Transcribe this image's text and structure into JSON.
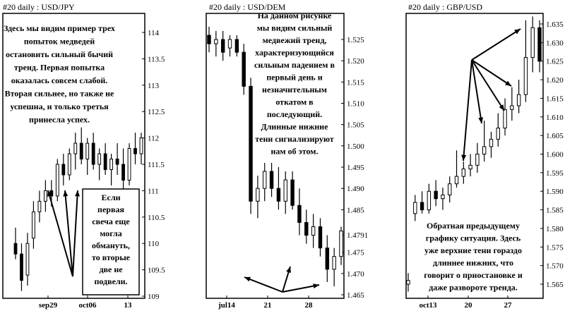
{
  "chart_data": [
    {
      "type": "candlestick",
      "title": "#20  daily : USD/JPY",
      "y_ticks": [
        "114",
        "113.5",
        "113",
        "112.5",
        "112",
        "111.5",
        "111",
        "110.5",
        "110",
        "109.5",
        "109"
      ],
      "ylim": [
        109,
        114.2
      ],
      "x_ticks": [
        "sep29",
        "oct06",
        "13"
      ],
      "annotation": "Здесь мы видим пример трех попыток медведей остановить сильный бычий тренд. Первая попытка оказалась совсем слабой. Вторая сильнее, но также не успешна, и только третья принесла успех.",
      "annotation2": "Если первая свеча еще могла обмануть, то вторые две не подвели.",
      "candles": [
        {
          "o": 110.0,
          "h": 110.3,
          "l": 109.7,
          "c": 109.8
        },
        {
          "o": 109.8,
          "h": 110.0,
          "l": 109.1,
          "c": 109.3
        },
        {
          "o": 109.4,
          "h": 110.2,
          "l": 109.2,
          "c": 110.0
        },
        {
          "o": 110.1,
          "h": 110.8,
          "l": 109.9,
          "c": 110.6
        },
        {
          "o": 110.6,
          "h": 111.0,
          "l": 110.4,
          "c": 110.8
        },
        {
          "o": 110.8,
          "h": 111.2,
          "l": 110.6,
          "c": 111.0
        },
        {
          "o": 111.0,
          "h": 111.2,
          "l": 110.7,
          "c": 110.9
        },
        {
          "o": 110.9,
          "h": 111.6,
          "l": 110.8,
          "c": 111.5
        },
        {
          "o": 111.5,
          "h": 111.7,
          "l": 111.1,
          "c": 111.3
        },
        {
          "o": 111.3,
          "h": 111.8,
          "l": 111.2,
          "c": 111.7
        },
        {
          "o": 111.7,
          "h": 112.1,
          "l": 111.4,
          "c": 111.9
        },
        {
          "o": 111.9,
          "h": 112.2,
          "l": 111.5,
          "c": 111.6
        },
        {
          "o": 111.6,
          "h": 112.0,
          "l": 111.3,
          "c": 111.9
        },
        {
          "o": 111.9,
          "h": 112.1,
          "l": 111.4,
          "c": 111.5
        },
        {
          "o": 111.5,
          "h": 111.8,
          "l": 111.2,
          "c": 111.7
        },
        {
          "o": 111.7,
          "h": 111.9,
          "l": 111.3,
          "c": 111.4
        },
        {
          "o": 111.4,
          "h": 111.7,
          "l": 111.1,
          "c": 111.6
        },
        {
          "o": 111.6,
          "h": 111.9,
          "l": 111.3,
          "c": 111.5
        },
        {
          "o": 111.5,
          "h": 111.8,
          "l": 111.0,
          "c": 111.2
        },
        {
          "o": 111.2,
          "h": 111.9,
          "l": 111.1,
          "c": 111.8
        },
        {
          "o": 111.8,
          "h": 112.1,
          "l": 111.5,
          "c": 111.7
        },
        {
          "o": 111.7,
          "h": 112.1,
          "l": 111.5,
          "c": 112.0
        }
      ]
    },
    {
      "type": "candlestick",
      "title": "#20   daily : USD/DEM",
      "y_ticks": [
        "1.525",
        "1.520",
        "1.515",
        "1.510",
        "1.505",
        "1.500",
        "1.495",
        "1.490",
        "1.485",
        "1.4791",
        "1.475",
        "1.470",
        "1.465"
      ],
      "ylim": [
        1.465,
        1.528
      ],
      "x_ticks": [
        "jul14",
        "21",
        "28"
      ],
      "annotation": "На данном рисунке мы видим сильный медвежий тренд, характеризующийся сильным падением в первый день и незначительным откатом в последующий. Длинные нижние тени сигнализируют нам об этом.",
      "candles": [
        {
          "o": 1.526,
          "h": 1.528,
          "l": 1.522,
          "c": 1.524
        },
        {
          "o": 1.524,
          "h": 1.527,
          "l": 1.521,
          "c": 1.525
        },
        {
          "o": 1.525,
          "h": 1.527,
          "l": 1.52,
          "c": 1.522
        },
        {
          "o": 1.523,
          "h": 1.526,
          "l": 1.521,
          "c": 1.525
        },
        {
          "o": 1.525,
          "h": 1.526,
          "l": 1.521,
          "c": 1.522
        },
        {
          "o": 1.522,
          "h": 1.524,
          "l": 1.512,
          "c": 1.514
        },
        {
          "o": 1.514,
          "h": 1.516,
          "l": 1.484,
          "c": 1.487
        },
        {
          "o": 1.487,
          "h": 1.493,
          "l": 1.483,
          "c": 1.49
        },
        {
          "o": 1.49,
          "h": 1.496,
          "l": 1.487,
          "c": 1.494
        },
        {
          "o": 1.494,
          "h": 1.496,
          "l": 1.488,
          "c": 1.49
        },
        {
          "o": 1.49,
          "h": 1.495,
          "l": 1.485,
          "c": 1.487
        },
        {
          "o": 1.487,
          "h": 1.494,
          "l": 1.484,
          "c": 1.492
        },
        {
          "o": 1.492,
          "h": 1.494,
          "l": 1.485,
          "c": 1.486
        },
        {
          "o": 1.486,
          "h": 1.49,
          "l": 1.479,
          "c": 1.482
        },
        {
          "o": 1.482,
          "h": 1.485,
          "l": 1.477,
          "c": 1.479
        },
        {
          "o": 1.479,
          "h": 1.484,
          "l": 1.476,
          "c": 1.481
        },
        {
          "o": 1.481,
          "h": 1.483,
          "l": 1.474,
          "c": 1.476
        },
        {
          "o": 1.476,
          "h": 1.479,
          "l": 1.468,
          "c": 1.471
        },
        {
          "o": 1.471,
          "h": 1.476,
          "l": 1.467,
          "c": 1.474
        },
        {
          "o": 1.474,
          "h": 1.481,
          "l": 1.472,
          "c": 1.48
        }
      ]
    },
    {
      "type": "candlestick",
      "title": "#20   daily : GBP/USD",
      "y_ticks": [
        "1.635",
        "1.630",
        "1.625",
        "1.620",
        "1.615",
        "1.610",
        "1.605",
        "1.600",
        "1.595",
        "1.590",
        "1.585",
        "1.580",
        "1.575",
        "1.570",
        "1.565"
      ],
      "ylim": [
        1.562,
        1.638
      ],
      "x_ticks": [
        "oct13",
        "20",
        "27"
      ],
      "annotation": "Обратная предыдущему графику ситуация. Здесь уже верхние тени гораздо длиннее нижних, что говорит о приостановке и даже развороте тренда.",
      "candles": [
        {
          "o": 1.565,
          "h": 1.568,
          "l": 1.563,
          "c": 1.566
        },
        {
          "o": 1.584,
          "h": 1.589,
          "l": 1.582,
          "c": 1.587
        },
        {
          "o": 1.587,
          "h": 1.59,
          "l": 1.584,
          "c": 1.585
        },
        {
          "o": 1.585,
          "h": 1.592,
          "l": 1.584,
          "c": 1.59
        },
        {
          "o": 1.59,
          "h": 1.593,
          "l": 1.586,
          "c": 1.588
        },
        {
          "o": 1.588,
          "h": 1.591,
          "l": 1.585,
          "c": 1.589
        },
        {
          "o": 1.589,
          "h": 1.594,
          "l": 1.587,
          "c": 1.592
        },
        {
          "o": 1.592,
          "h": 1.601,
          "l": 1.591,
          "c": 1.594
        },
        {
          "o": 1.594,
          "h": 1.598,
          "l": 1.592,
          "c": 1.596
        },
        {
          "o": 1.596,
          "h": 1.6,
          "l": 1.594,
          "c": 1.597
        },
        {
          "o": 1.597,
          "h": 1.603,
          "l": 1.595,
          "c": 1.6
        },
        {
          "o": 1.6,
          "h": 1.609,
          "l": 1.598,
          "c": 1.602
        },
        {
          "o": 1.602,
          "h": 1.606,
          "l": 1.599,
          "c": 1.604
        },
        {
          "o": 1.604,
          "h": 1.611,
          "l": 1.602,
          "c": 1.607
        },
        {
          "o": 1.607,
          "h": 1.615,
          "l": 1.605,
          "c": 1.612
        },
        {
          "o": 1.612,
          "h": 1.618,
          "l": 1.609,
          "c": 1.613
        },
        {
          "o": 1.613,
          "h": 1.62,
          "l": 1.611,
          "c": 1.616
        },
        {
          "o": 1.616,
          "h": 1.636,
          "l": 1.614,
          "c": 1.626
        },
        {
          "o": 1.626,
          "h": 1.637,
          "l": 1.622,
          "c": 1.634
        },
        {
          "o": 1.634,
          "h": 1.636,
          "l": 1.622,
          "c": 1.625
        }
      ]
    }
  ]
}
